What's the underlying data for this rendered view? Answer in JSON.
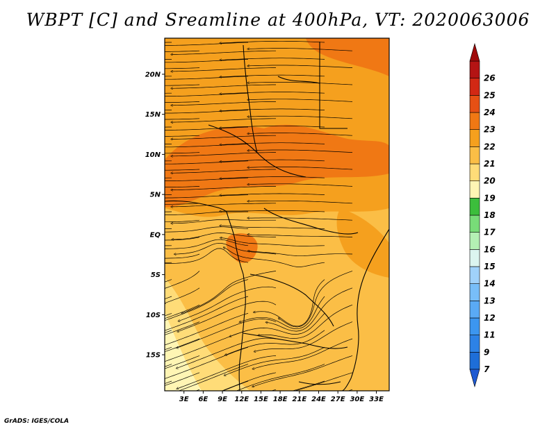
{
  "title": "WBPT [C] and Sreamline at 400hPa, VT: 2020063006",
  "footer": "GrADS: IGES/COLA",
  "map": {
    "lon_range": [
      0,
      35
    ],
    "lat_range": [
      -19.5,
      24.5
    ],
    "lat_ticks": [
      {
        "value": 20,
        "label": "20N"
      },
      {
        "value": 15,
        "label": "15N"
      },
      {
        "value": 10,
        "label": "10N"
      },
      {
        "value": 5,
        "label": "5N"
      },
      {
        "value": 0,
        "label": "EQ"
      },
      {
        "value": -5,
        "label": "5S"
      },
      {
        "value": -10,
        "label": "10S"
      },
      {
        "value": -15,
        "label": "15S"
      }
    ],
    "lon_ticks": [
      {
        "value": 3,
        "label": "3E"
      },
      {
        "value": 6,
        "label": "6E"
      },
      {
        "value": 9,
        "label": "9E"
      },
      {
        "value": 12,
        "label": "12E"
      },
      {
        "value": 15,
        "label": "15E"
      },
      {
        "value": 18,
        "label": "18E"
      },
      {
        "value": 21,
        "label": "21E"
      },
      {
        "value": 24,
        "label": "24E"
      },
      {
        "value": 27,
        "label": "27E"
      },
      {
        "value": 30,
        "label": "30E"
      },
      {
        "value": 33,
        "label": "33E"
      }
    ]
  },
  "colorbar": {
    "levels": [
      {
        "label": "7",
        "color": "#1e6ed8"
      },
      {
        "label": "9",
        "color": "#2d82e6"
      },
      {
        "label": "11",
        "color": "#3c96f0"
      },
      {
        "label": "12",
        "color": "#5aaaf5"
      },
      {
        "label": "13",
        "color": "#78bef8"
      },
      {
        "label": "14",
        "color": "#a0d2fa"
      },
      {
        "label": "15",
        "color": "#dcf5f0"
      },
      {
        "label": "16",
        "color": "#b4f0b4"
      },
      {
        "label": "17",
        "color": "#78dc78"
      },
      {
        "label": "18",
        "color": "#3cbe3c"
      },
      {
        "label": "19",
        "color": "#fff5b4"
      },
      {
        "label": "20",
        "color": "#ffdc78"
      },
      {
        "label": "21",
        "color": "#fbbe46"
      },
      {
        "label": "22",
        "color": "#f5a01e"
      },
      {
        "label": "23",
        "color": "#f07814"
      },
      {
        "label": "24",
        "color": "#e65014"
      },
      {
        "label": "25",
        "color": "#d22814"
      },
      {
        "label": "26",
        "color": "#b41414"
      }
    ],
    "under_color": "#1e5ad2",
    "over_color": "#a00a0a"
  }
}
